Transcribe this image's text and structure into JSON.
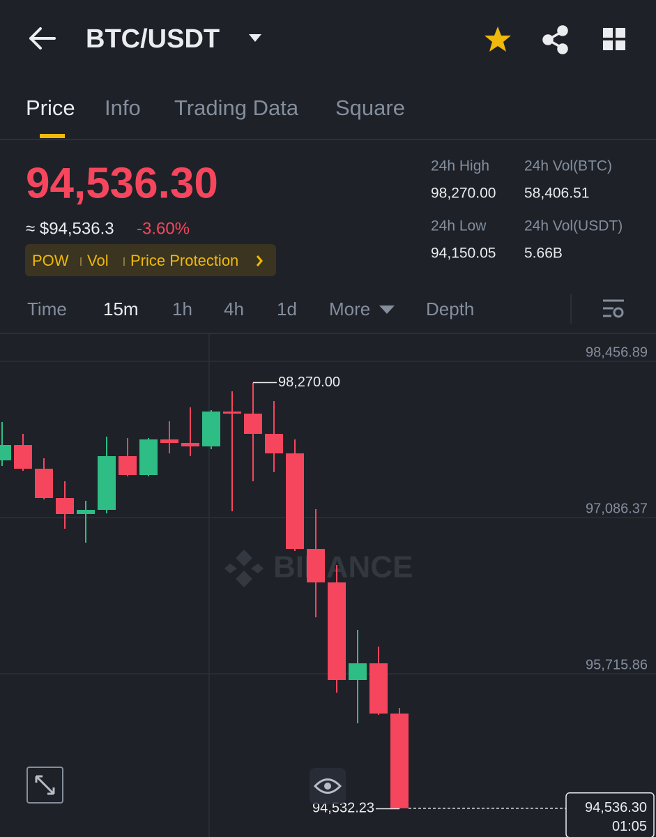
{
  "header": {
    "pair": "BTC/USDT"
  },
  "tabs": [
    "Price",
    "Info",
    "Trading Data",
    "Square"
  ],
  "ticker": {
    "last_price": "94,536.30",
    "approx": "≈ $94,536.3",
    "change": "-3.60%",
    "tags": [
      "POW",
      "Vol",
      "Price Protection"
    ],
    "stats": [
      {
        "label": "24h High",
        "value": "98,270.00"
      },
      {
        "label": "24h Vol(BTC)",
        "value": "58,406.51"
      },
      {
        "label": "24h Low",
        "value": "94,150.05"
      },
      {
        "label": "24h Vol(USDT)",
        "value": "5.66B"
      }
    ]
  },
  "intervals": [
    "Time",
    "15m",
    "1h",
    "4h",
    "1d",
    "More",
    "Depth"
  ],
  "chart_data": {
    "type": "candlestick",
    "watermark": "BINANCE",
    "up_color": "#2ebd85",
    "down_color": "#f6465d",
    "ylim": [
      94284.21,
      98701.62
    ],
    "yticks": [
      {
        "value": 98456.89,
        "label": "98,456.89"
      },
      {
        "value": 97086.37,
        "label": "97,086.37"
      },
      {
        "value": 95715.86,
        "label": "95,715.86"
      }
    ],
    "candles": [
      {
        "open": 97588.09,
        "high": 97924.6,
        "low": 97539.14,
        "close": 97722.69
      },
      {
        "open": 97722.69,
        "high": 97820.59,
        "low": 97496.32,
        "close": 97514.67
      },
      {
        "open": 97514.67,
        "high": 97606.45,
        "low": 97245.47,
        "close": 97257.7
      },
      {
        "open": 97257.7,
        "high": 97404.54,
        "low": 96988.5,
        "close": 97116.98
      },
      {
        "open": 97116.98,
        "high": 97233.23,
        "low": 96866.13,
        "close": 97153.69
      },
      {
        "open": 97153.69,
        "high": 97796.11,
        "low": 97123.1,
        "close": 97624.8
      },
      {
        "open": 97624.8,
        "high": 97783.88,
        "low": 97447.37,
        "close": 97459.61
      },
      {
        "open": 97459.61,
        "high": 97783.88,
        "low": 97447.37,
        "close": 97771.64
      },
      {
        "open": 97771.64,
        "high": 97930.72,
        "low": 97649.27,
        "close": 97741.05
      },
      {
        "open": 97741.05,
        "high": 98053.08,
        "low": 97624.8,
        "close": 97710.46
      },
      {
        "open": 97710.46,
        "high": 98028.61,
        "low": 97685.98,
        "close": 98016.37
      },
      {
        "open": 98016.37,
        "high": 98193.8,
        "low": 97141.46,
        "close": 97998.02
      },
      {
        "open": 97998.02,
        "high": 98270.0,
        "low": 97404.54,
        "close": 97820.59
      },
      {
        "open": 97820.59,
        "high": 98108.15,
        "low": 97484.08,
        "close": 97649.27
      },
      {
        "open": 97649.27,
        "high": 97771.64,
        "low": 96792.71,
        "close": 96811.07
      },
      {
        "open": 96811.07,
        "high": 97159.8,
        "low": 96211.47,
        "close": 96517.39
      },
      {
        "open": 96517.39,
        "high": 96670.35,
        "low": 95550.7,
        "close": 95660.83
      },
      {
        "open": 95660.83,
        "high": 96101.34,
        "low": 95281.49,
        "close": 95807.67
      },
      {
        "open": 95807.67,
        "high": 95954.51,
        "low": 95354.91,
        "close": 95367.15
      },
      {
        "open": 95367.15,
        "high": 95416.09,
        "low": 94532.23,
        "close": 94536.3
      }
    ],
    "high_label": "98,270.00",
    "low_label": "94,532.23",
    "last_label": "94,536.30",
    "countdown": "01:05"
  }
}
